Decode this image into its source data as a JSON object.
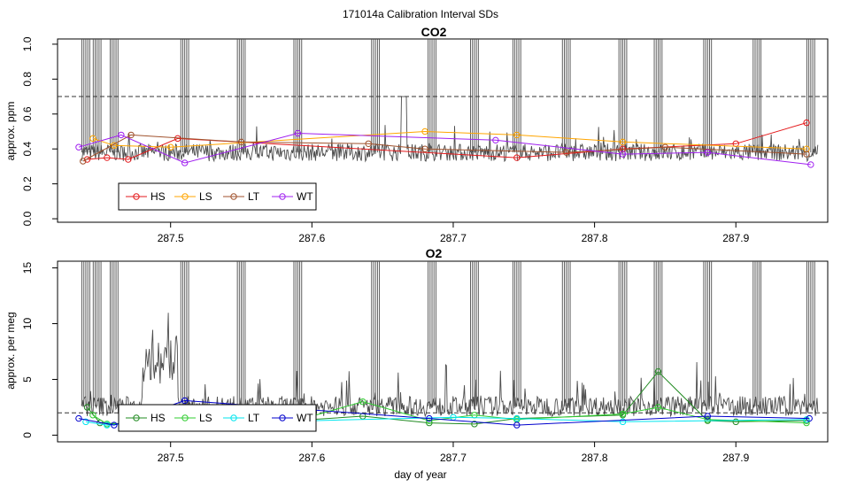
{
  "figure_title": "171014a   Calibration Interval SDs",
  "colors": {
    "trace": "#4d4d4d",
    "co2": {
      "HS": "#e41a1c",
      "LS": "#ffa500",
      "LT": "#a0522d",
      "WT": "#a020f0"
    },
    "o2": {
      "HS": "#228b22",
      "LS": "#32cd32",
      "LT": "#00e5ee",
      "WT": "#0000cd"
    },
    "threshold": "#333333"
  },
  "chart_data": [
    {
      "id": "co2",
      "type": "line",
      "title": "CO2",
      "xlabel": "",
      "ylabel": "approx. ppm",
      "xlim": [
        287.42,
        287.965
      ],
      "ylim": [
        -0.02,
        1.03
      ],
      "xticks": [
        287.5,
        287.6,
        287.7,
        287.8,
        287.9
      ],
      "xtick_labels": [
        "287.5",
        "287.6",
        "287.7",
        "287.8",
        "287.9"
      ],
      "yticks": [
        0,
        0.2,
        0.4,
        0.6,
        0.8,
        1.0
      ],
      "ytick_labels": [
        "0.0",
        "0.2",
        "0.4",
        "0.6",
        "0.8",
        "1.0"
      ],
      "threshold": 0.7,
      "trace_baseline": 0.38,
      "trace_amplitude": 0.05,
      "legend": [
        "HS",
        "LS",
        "LT",
        "WT"
      ],
      "legend_position": "bottom-left",
      "series": [
        {
          "name": "HS",
          "points": [
            [
              287.441,
              0.34
            ],
            [
              287.455,
              0.35
            ],
            [
              287.47,
              0.34
            ],
            [
              287.505,
              0.46
            ],
            [
              287.745,
              0.35
            ],
            [
              287.82,
              0.4
            ],
            [
              287.9,
              0.43
            ],
            [
              287.95,
              0.55
            ]
          ]
        },
        {
          "name": "LS",
          "points": [
            [
              287.445,
              0.46
            ],
            [
              287.46,
              0.42
            ],
            [
              287.5,
              0.41
            ],
            [
              287.68,
              0.5
            ],
            [
              287.745,
              0.48
            ],
            [
              287.82,
              0.44
            ],
            [
              287.95,
              0.4
            ]
          ]
        },
        {
          "name": "LT",
          "points": [
            [
              287.438,
              0.33
            ],
            [
              287.472,
              0.48
            ],
            [
              287.55,
              0.44
            ],
            [
              287.64,
              0.43
            ],
            [
              287.68,
              0.4
            ],
            [
              287.78,
              0.38
            ],
            [
              287.85,
              0.41
            ],
            [
              287.95,
              0.37
            ]
          ]
        },
        {
          "name": "WT",
          "points": [
            [
              287.435,
              0.41
            ],
            [
              287.465,
              0.48
            ],
            [
              287.51,
              0.32
            ],
            [
              287.59,
              0.49
            ],
            [
              287.73,
              0.45
            ],
            [
              287.82,
              0.37
            ],
            [
              287.88,
              0.38
            ],
            [
              287.953,
              0.31
            ]
          ]
        }
      ]
    },
    {
      "id": "o2",
      "type": "line",
      "title": "O2",
      "xlabel": "day of year",
      "ylabel": "approx. per meg",
      "xlim": [
        287.42,
        287.965
      ],
      "ylim": [
        -0.6,
        15.6
      ],
      "xticks": [
        287.5,
        287.6,
        287.7,
        287.8,
        287.9
      ],
      "xtick_labels": [
        "287.5",
        "287.6",
        "287.7",
        "287.8",
        "287.9"
      ],
      "yticks": [
        0,
        5,
        10,
        15
      ],
      "ytick_labels": [
        "0",
        "5",
        "10",
        "15"
      ],
      "threshold": 2.0,
      "trace_baseline": 2.6,
      "trace_amplitude": 0.9,
      "legend": [
        "HS",
        "LS",
        "LT",
        "WT"
      ],
      "legend_position": "bottom-left",
      "series": [
        {
          "name": "HS",
          "points": [
            [
              287.441,
              2.5
            ],
            [
              287.45,
              1.1
            ],
            [
              287.47,
              1.0
            ],
            [
              287.5,
              1.3
            ],
            [
              287.6,
              1.4
            ],
            [
              287.636,
              1.7
            ],
            [
              287.683,
              1.1
            ],
            [
              287.715,
              1.0
            ],
            [
              287.745,
              1.5
            ],
            [
              287.82,
              1.8
            ],
            [
              287.845,
              5.7
            ],
            [
              287.88,
              1.3
            ],
            [
              287.9,
              1.2
            ],
            [
              287.95,
              1.3
            ]
          ]
        },
        {
          "name": "LS",
          "points": [
            [
              287.445,
              1.8
            ],
            [
              287.455,
              1.0
            ],
            [
              287.5,
              1.1
            ],
            [
              287.6,
              1.7
            ],
            [
              287.636,
              3.0
            ],
            [
              287.683,
              1.3
            ],
            [
              287.715,
              1.8
            ],
            [
              287.745,
              1.4
            ],
            [
              287.82,
              1.9
            ],
            [
              287.845,
              2.5
            ],
            [
              287.88,
              1.4
            ],
            [
              287.95,
              1.1
            ]
          ]
        },
        {
          "name": "LT",
          "points": [
            [
              287.44,
              1.2
            ],
            [
              287.455,
              0.9
            ],
            [
              287.5,
              1.3
            ],
            [
              287.6,
              1.3
            ],
            [
              287.7,
              1.6
            ],
            [
              287.745,
              1.5
            ],
            [
              287.82,
              1.2
            ],
            [
              287.95,
              1.4
            ]
          ]
        },
        {
          "name": "WT",
          "points": [
            [
              287.435,
              1.5
            ],
            [
              287.46,
              0.9
            ],
            [
              287.51,
              3.1
            ],
            [
              287.683,
              1.5
            ],
            [
              287.745,
              0.9
            ],
            [
              287.88,
              1.7
            ],
            [
              287.952,
              1.5
            ]
          ]
        }
      ]
    }
  ]
}
